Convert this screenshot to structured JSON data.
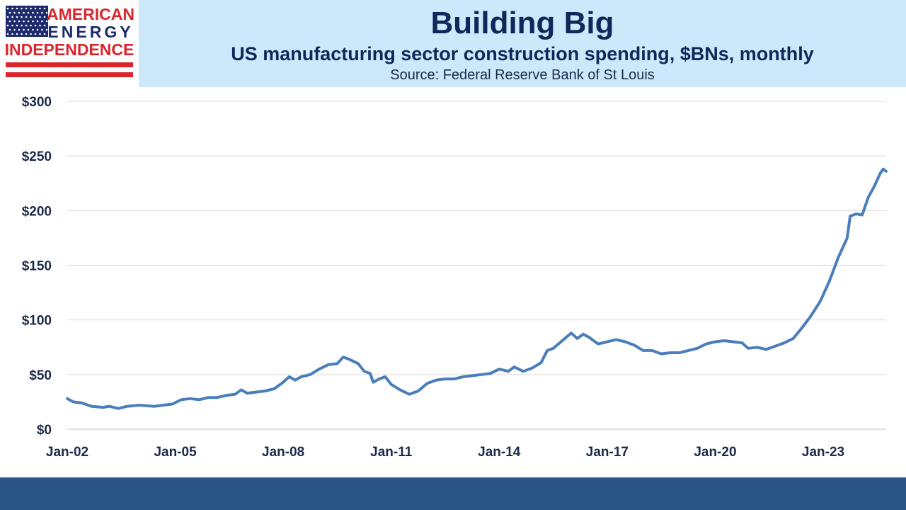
{
  "brand": {
    "line1": "AMERICAN",
    "line2": "ENERGY",
    "line3": "INDEPENDENCE",
    "colors": {
      "red": "#d9262c",
      "blue": "#1d2a6b",
      "white": "#ffffff"
    }
  },
  "header": {
    "title": "Building Big",
    "subtitle": "US manufacturing sector construction spending, $BNs, monthly",
    "source": "Source: Federal Reserve Bank of St Louis"
  },
  "colors": {
    "line": "#4a7ebb",
    "header_band": "#cce9fb",
    "footer_band": "#2a5585",
    "grid": "#d9d9d9",
    "text": "#1d2a48"
  },
  "chart_data": {
    "type": "line",
    "title": "Building Big",
    "subtitle": "US manufacturing sector construction spending, $BNs, monthly",
    "xlabel": "",
    "ylabel": "",
    "ylim": [
      0,
      300
    ],
    "xlim": [
      "2002-01",
      "2024-10"
    ],
    "yticks": [
      0,
      50,
      100,
      150,
      200,
      250,
      300
    ],
    "ytick_labels": [
      "$0",
      "$50",
      "$100",
      "$150",
      "$200",
      "$250",
      "$300"
    ],
    "xticks": [
      "2002-01",
      "2005-01",
      "2008-01",
      "2011-01",
      "2014-01",
      "2017-01",
      "2020-01",
      "2023-01"
    ],
    "xtick_labels": [
      "Jan-02",
      "Jan-05",
      "Jan-08",
      "Jan-11",
      "Jan-14",
      "Jan-17",
      "Jan-20",
      "Jan-23"
    ],
    "grid": true,
    "legend": "none",
    "series": [
      {
        "color": "#4a7ebb",
        "points": [
          [
            "2002-01",
            28
          ],
          [
            "2002-03",
            25
          ],
          [
            "2002-06",
            24
          ],
          [
            "2002-09",
            21
          ],
          [
            "2003-01",
            20
          ],
          [
            "2003-03",
            21
          ],
          [
            "2003-06",
            19
          ],
          [
            "2003-09",
            21
          ],
          [
            "2004-01",
            22
          ],
          [
            "2004-06",
            21
          ],
          [
            "2004-09",
            22
          ],
          [
            "2004-12",
            23
          ],
          [
            "2005-03",
            27
          ],
          [
            "2005-06",
            28
          ],
          [
            "2005-09",
            27
          ],
          [
            "2005-12",
            29
          ],
          [
            "2006-03",
            29
          ],
          [
            "2006-06",
            31
          ],
          [
            "2006-09",
            32
          ],
          [
            "2006-11",
            36
          ],
          [
            "2007-01",
            33
          ],
          [
            "2007-04",
            34
          ],
          [
            "2007-07",
            35
          ],
          [
            "2007-10",
            37
          ],
          [
            "2008-01",
            43
          ],
          [
            "2008-03",
            48
          ],
          [
            "2008-05",
            45
          ],
          [
            "2008-07",
            48
          ],
          [
            "2008-10",
            50
          ],
          [
            "2009-01",
            55
          ],
          [
            "2009-04",
            59
          ],
          [
            "2009-07",
            60
          ],
          [
            "2009-09",
            66
          ],
          [
            "2009-11",
            64
          ],
          [
            "2010-02",
            60
          ],
          [
            "2010-04",
            53
          ],
          [
            "2010-06",
            51
          ],
          [
            "2010-07",
            43
          ],
          [
            "2010-09",
            46
          ],
          [
            "2010-11",
            48
          ],
          [
            "2011-01",
            41
          ],
          [
            "2011-04",
            36
          ],
          [
            "2011-07",
            32
          ],
          [
            "2011-10",
            35
          ],
          [
            "2012-01",
            42
          ],
          [
            "2012-04",
            45
          ],
          [
            "2012-07",
            46
          ],
          [
            "2012-10",
            46
          ],
          [
            "2013-01",
            48
          ],
          [
            "2013-04",
            49
          ],
          [
            "2013-07",
            50
          ],
          [
            "2013-10",
            51
          ],
          [
            "2014-01",
            55
          ],
          [
            "2014-04",
            53
          ],
          [
            "2014-06",
            57
          ],
          [
            "2014-09",
            53
          ],
          [
            "2014-12",
            56
          ],
          [
            "2015-03",
            61
          ],
          [
            "2015-05",
            72
          ],
          [
            "2015-07",
            74
          ],
          [
            "2015-10",
            81
          ],
          [
            "2016-01",
            88
          ],
          [
            "2016-03",
            83
          ],
          [
            "2016-05",
            87
          ],
          [
            "2016-07",
            84
          ],
          [
            "2016-10",
            78
          ],
          [
            "2017-01",
            80
          ],
          [
            "2017-04",
            82
          ],
          [
            "2017-07",
            80
          ],
          [
            "2017-10",
            77
          ],
          [
            "2018-01",
            72
          ],
          [
            "2018-04",
            72
          ],
          [
            "2018-07",
            69
          ],
          [
            "2018-10",
            70
          ],
          [
            "2019-01",
            70
          ],
          [
            "2019-04",
            72
          ],
          [
            "2019-07",
            74
          ],
          [
            "2019-10",
            78
          ],
          [
            "2020-01",
            80
          ],
          [
            "2020-04",
            81
          ],
          [
            "2020-07",
            80
          ],
          [
            "2020-10",
            79
          ],
          [
            "2020-12",
            74
          ],
          [
            "2021-03",
            75
          ],
          [
            "2021-06",
            73
          ],
          [
            "2021-09",
            76
          ],
          [
            "2021-12",
            79
          ],
          [
            "2022-03",
            83
          ],
          [
            "2022-06",
            93
          ],
          [
            "2022-09",
            104
          ],
          [
            "2022-12",
            117
          ],
          [
            "2023-03",
            135
          ],
          [
            "2023-06",
            157
          ],
          [
            "2023-09",
            175
          ],
          [
            "2023-10",
            195
          ],
          [
            "2023-12",
            197
          ],
          [
            "2024-02",
            196
          ],
          [
            "2024-04",
            212
          ],
          [
            "2024-06",
            222
          ],
          [
            "2024-08",
            234
          ],
          [
            "2024-09",
            238
          ],
          [
            "2024-10",
            236
          ]
        ]
      }
    ]
  }
}
